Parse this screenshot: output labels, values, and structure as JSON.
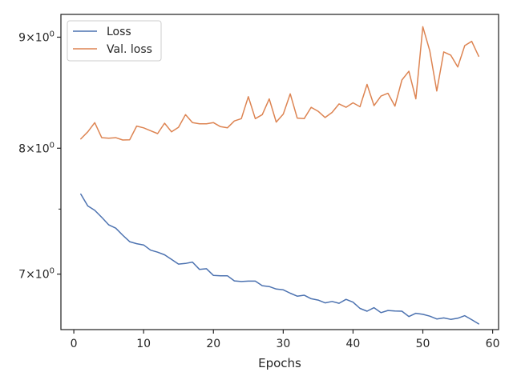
{
  "chart_data": {
    "type": "line",
    "xlabel": "Epochs",
    "ylabel": "",
    "xlim": [
      -1.85,
      60.85
    ],
    "ylim": [
      6.6,
      9.22
    ],
    "yscale": "log",
    "grid": false,
    "legend_position": "top-left",
    "x_ticks": [
      {
        "value": 0,
        "label": "0"
      },
      {
        "value": 10,
        "label": "10"
      },
      {
        "value": 20,
        "label": "20"
      },
      {
        "value": 30,
        "label": "30"
      },
      {
        "value": 40,
        "label": "40"
      },
      {
        "value": 50,
        "label": "50"
      },
      {
        "value": 60,
        "label": "60"
      }
    ],
    "y_ticks": [
      {
        "value": 7,
        "base": "7",
        "mult": "×",
        "ten": "10",
        "exp": "0"
      },
      {
        "value": 8,
        "base": "8",
        "mult": "×",
        "ten": "10",
        "exp": "0"
      },
      {
        "value": 9,
        "base": "9",
        "mult": "×",
        "ten": "10",
        "exp": "0"
      }
    ],
    "y_minor_ticks": [
      7.5
    ],
    "x": [
      1,
      2,
      3,
      4,
      5,
      6,
      7,
      8,
      9,
      10,
      11,
      12,
      13,
      14,
      15,
      16,
      17,
      18,
      19,
      20,
      21,
      22,
      23,
      24,
      25,
      26,
      27,
      28,
      29,
      30,
      31,
      32,
      33,
      34,
      35,
      36,
      37,
      38,
      39,
      40,
      41,
      42,
      43,
      44,
      45,
      46,
      47,
      48,
      49,
      50,
      51,
      52,
      53,
      54,
      55,
      56,
      57,
      58
    ],
    "series": [
      {
        "name": "Loss",
        "color": "#4c72b0",
        "values": [
          7.62,
          7.525,
          7.49,
          7.435,
          7.375,
          7.35,
          7.295,
          7.245,
          7.23,
          7.22,
          7.18,
          7.165,
          7.145,
          7.11,
          7.075,
          7.08,
          7.09,
          7.035,
          7.04,
          6.99,
          6.988,
          6.988,
          6.95,
          6.945,
          6.948,
          6.948,
          6.915,
          6.908,
          6.89,
          6.884,
          6.86,
          6.838,
          6.845,
          6.82,
          6.81,
          6.79,
          6.8,
          6.787,
          6.815,
          6.795,
          6.75,
          6.73,
          6.755,
          6.72,
          6.735,
          6.732,
          6.73,
          6.692,
          6.715,
          6.708,
          6.695,
          6.675,
          6.682,
          6.672,
          6.68,
          6.698,
          6.67,
          6.64
        ]
      },
      {
        "name": "Val. loss",
        "color": "#dd8452",
        "values": [
          8.08,
          8.14,
          8.22,
          8.09,
          8.085,
          8.09,
          8.07,
          8.072,
          8.19,
          8.175,
          8.15,
          8.125,
          8.215,
          8.14,
          8.18,
          8.29,
          8.22,
          8.21,
          8.21,
          8.22,
          8.185,
          8.175,
          8.235,
          8.255,
          8.45,
          8.255,
          8.29,
          8.43,
          8.225,
          8.295,
          8.475,
          8.26,
          8.255,
          8.355,
          8.32,
          8.265,
          8.31,
          8.385,
          8.355,
          8.395,
          8.36,
          8.56,
          8.37,
          8.455,
          8.48,
          8.365,
          8.6,
          8.68,
          8.43,
          9.1,
          8.87,
          8.5,
          8.86,
          8.83,
          8.72,
          8.92,
          8.96,
          8.82
        ]
      }
    ]
  }
}
